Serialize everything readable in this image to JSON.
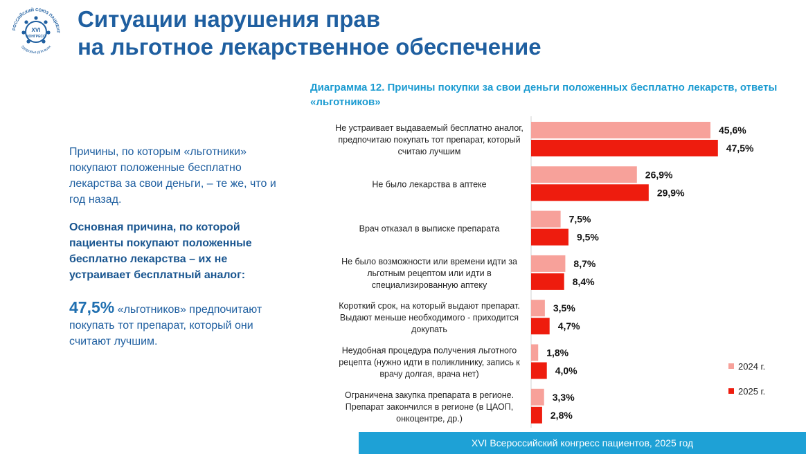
{
  "logo": {
    "ring_text_top": "ВСЕРОССИЙСКИЙ СОЮЗ ПАЦИЕНТОВ",
    "ring_text_bottom": "Здоровье для всех",
    "center_line1": "XVI",
    "center_line2": "КОНГРЕСС"
  },
  "title": {
    "line1": "Ситуации нарушения прав",
    "line2": "на льготное лекарственное обеспечение"
  },
  "left_panel": {
    "p1": "Причины, по которым «льготники» покупают положенные бесплатно лекарства за свои деньги, – те же, что и год назад.",
    "p2": "Основная причина, по которой пациенты покупают положенные бесплатно лекарства – их не устраивает бесплатный аналог:",
    "p3_value": "47,5%",
    "p3_text": " «льготников» предпочитают покупать тот препарат, который они считают лучшим."
  },
  "chart_data": {
    "type": "bar",
    "orientation": "horizontal",
    "title": "Диаграмма 12. Причины покупки за свои деньги положенных бесплатно лекарств, ответы «льготников»",
    "categories": [
      [
        "Не устраивает выдаваемый бесплатно аналог,",
        "предпочитаю покупать тот препарат, который",
        "считаю лучшим"
      ],
      [
        "Не было лекарства в аптеке"
      ],
      [
        "Врач отказал в выписке препарата"
      ],
      [
        "Не было возможности или времени идти за",
        "льготным рецептом или идти в",
        "специализированную аптеку"
      ],
      [
        "Короткий срок, на который выдают препарат.",
        "Выдают меньше необходимого - приходится",
        "докупать"
      ],
      [
        "Неудобная процедура получения льготного",
        "рецепта (нужно идти в поликлинику, запись к",
        "врачу долгая, врача нет)"
      ],
      [
        "Ограничена закупка препарата в регионе.",
        "Препарат закончился в регионе (в ЦАОП,",
        "онкоцентре, др.)"
      ]
    ],
    "series": [
      {
        "name": "2024 г.",
        "color": "#f7a19a",
        "values": [
          45.6,
          26.9,
          7.5,
          8.7,
          3.5,
          1.8,
          3.3
        ],
        "labels": [
          "45,6%",
          "26,9%",
          "7,5%",
          "8,7%",
          "3,5%",
          "1,8%",
          "3,3%"
        ]
      },
      {
        "name": "2025 г.",
        "color": "#ee1c0e",
        "values": [
          47.5,
          29.9,
          9.5,
          8.4,
          4.7,
          4.0,
          2.8
        ],
        "labels": [
          "47,5%",
          "29,9%",
          "9,5%",
          "8,4%",
          "4,7%",
          "4,0%",
          "2,8%"
        ]
      }
    ],
    "value_unit": "%",
    "xlim": [
      0,
      50
    ],
    "legend_position": "bottom-right",
    "grid": false
  },
  "footer": {
    "text": "XVI Всероссийский конгресс пациентов,  2025 год"
  }
}
